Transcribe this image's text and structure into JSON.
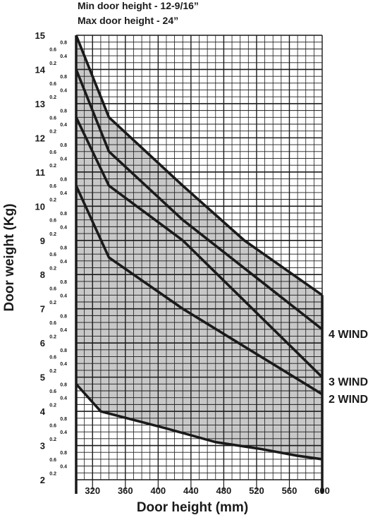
{
  "notes": {
    "min_height": "Min door height - 12-9/16”",
    "max_height": "Max door height - 24”"
  },
  "chart_data": {
    "type": "line",
    "title": "",
    "xlabel": "Door height (mm)",
    "ylabel": "Door weight (Kg)",
    "xlim": [
      300,
      600
    ],
    "ylim": [
      2,
      15
    ],
    "x_ticks": [
      320,
      360,
      400,
      440,
      480,
      520,
      560,
      600
    ],
    "y_major_ticks": [
      2,
      3,
      4,
      5,
      6,
      7,
      8,
      9,
      10,
      11,
      12,
      13,
      14,
      15
    ],
    "y_minor_tick_labels": [
      "0.2",
      "0.4",
      "0.6",
      "0.8"
    ],
    "grid": true,
    "shaded_region": "between upper and lower boundary, x 300–600",
    "series": [
      {
        "name": "4 WIND",
        "x": [
          300,
          340,
          430,
          600
        ],
        "y": [
          14.0,
          11.6,
          9.6,
          6.4
        ]
      },
      {
        "name": "3 WIND",
        "x": [
          300,
          340,
          430,
          600
        ],
        "y": [
          12.6,
          10.6,
          9.0,
          5.0
        ]
      },
      {
        "name": "2 WIND",
        "x": [
          300,
          340,
          430,
          600
        ],
        "y": [
          10.6,
          8.5,
          7.0,
          4.5
        ]
      },
      {
        "name": "",
        "x": [
          300,
          340,
          430,
          505,
          600
        ],
        "y": [
          15.0,
          12.6,
          10.6,
          9.0,
          7.4
        ]
      },
      {
        "name": "",
        "x": [
          300,
          330,
          410,
          470,
          525,
          570,
          600
        ],
        "y": [
          4.8,
          4.0,
          3.5,
          3.1,
          2.9,
          2.7,
          2.6
        ]
      }
    ]
  }
}
